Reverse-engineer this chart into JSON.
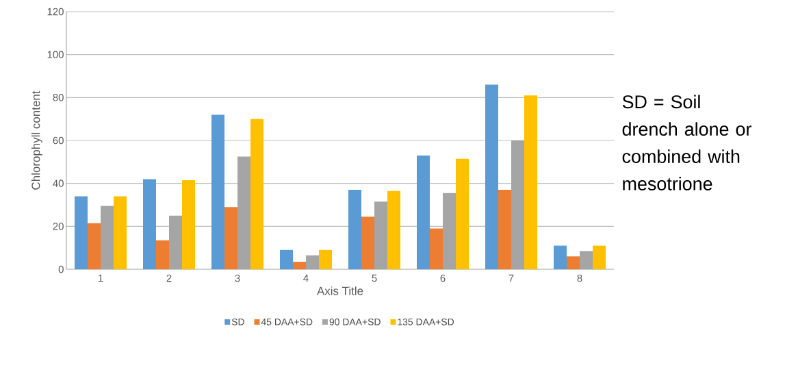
{
  "chart_data": {
    "type": "bar",
    "xlabel": "Axis Title",
    "ylabel": "Chlorophyll content",
    "categories": [
      "1",
      "2",
      "3",
      "4",
      "5",
      "6",
      "7",
      "8"
    ],
    "series": [
      {
        "name": "SD",
        "color": "#5b9bd5",
        "values": [
          34,
          42,
          72,
          9,
          37,
          53,
          86,
          11
        ]
      },
      {
        "name": "45 DAA+SD",
        "color": "#ed7d31",
        "values": [
          21.5,
          13.5,
          29,
          3.5,
          24.5,
          19,
          37,
          6
        ]
      },
      {
        "name": "90 DAA+SD",
        "color": "#a5a5a5",
        "values": [
          29.5,
          25,
          52.5,
          6.5,
          31.5,
          35.5,
          60,
          8.5
        ]
      },
      {
        "name": "135 DAA+SD",
        "color": "#ffc000",
        "values": [
          34,
          41.5,
          70,
          9,
          36.5,
          51.5,
          81,
          11
        ]
      }
    ],
    "ylim": [
      0,
      120
    ],
    "yticks": [
      0,
      20,
      40,
      60,
      80,
      100,
      120
    ],
    "grid": "y",
    "legend": "bottom",
    "annotations": [
      "SD = Soil drench alone or combined with mesotrione"
    ]
  }
}
